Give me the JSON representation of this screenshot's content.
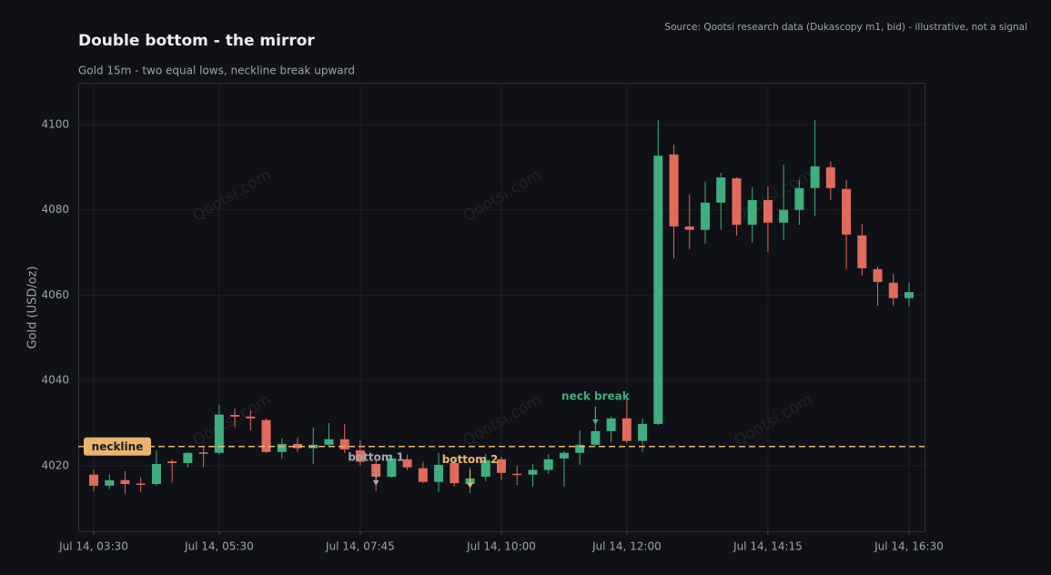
{
  "chart_data": {
    "type": "candlestick",
    "title": "Double bottom - the mirror",
    "subtitle": "Gold 15m - two equal lows, neckline break upward",
    "source": "Source: Qootsi research data (Dukascopy m1, bid) - illustrative, not a signal",
    "y_label": "Gold (USD/oz)",
    "watermark": "Qootsi.com",
    "up_color": "#3fae80",
    "down_color": "#e06a5c",
    "x": [
      210,
      225,
      240,
      255,
      270,
      285,
      300,
      315,
      330,
      345,
      360,
      375,
      390,
      405,
      420,
      435,
      450,
      465,
      480,
      495,
      510,
      525,
      540,
      555,
      570,
      585,
      600,
      615,
      630,
      645,
      660,
      675,
      690,
      705,
      720,
      735,
      750,
      765,
      780,
      795,
      810,
      825,
      840,
      855,
      870,
      885,
      900,
      915,
      930,
      945,
      960,
      975,
      990
    ],
    "open": [
      4017.9,
      4015.3,
      4016.6,
      4015.8,
      4015.7,
      4021.0,
      4020.6,
      4023.1,
      4023.0,
      4031.9,
      4031.5,
      4030.7,
      4023.2,
      4025.1,
      4024.1,
      4024.9,
      4026.2,
      4023.6,
      4020.4,
      4017.4,
      4021.5,
      4019.4,
      4016.2,
      4020.6,
      4015.7,
      4017.4,
      4021.5,
      4018.1,
      4017.9,
      4019.0,
      4021.7,
      4023.0,
      4024.9,
      4028.1,
      4031.1,
      4025.8,
      4029.8,
      4093.0,
      4076.1,
      4075.3,
      4081.7,
      4087.4,
      4076.5,
      4082.3,
      4077.0,
      4080.0,
      4085.1,
      4090.0,
      4084.9,
      4074.0,
      4066.1,
      4062.9,
      4059.3
    ],
    "high": [
      4019.0,
      4017.9,
      4018.7,
      4017.2,
      4023.6,
      4021.5,
      4023.2,
      4024.6,
      4034.3,
      4033.4,
      4033.0,
      4031.1,
      4026.4,
      4026.6,
      4029.0,
      4030.0,
      4029.8,
      4026.0,
      4021.5,
      4022.6,
      4022.6,
      4020.9,
      4023.0,
      4021.5,
      4019.6,
      4022.8,
      4022.1,
      4020.0,
      4020.4,
      4022.6,
      4023.4,
      4028.3,
      4030.4,
      4031.5,
      4036.0,
      4031.1,
      4101.1,
      4095.3,
      4083.6,
      4086.6,
      4088.7,
      4087.6,
      4085.3,
      4085.5,
      4090.6,
      4087.0,
      4101.1,
      4091.3,
      4087.0,
      4076.7,
      4066.7,
      4065.0,
      4062.9
    ],
    "low": [
      4014.0,
      4014.5,
      4013.4,
      4013.8,
      4015.3,
      4016.0,
      4019.6,
      4019.6,
      4022.6,
      4029.0,
      4028.3,
      4023.0,
      4021.7,
      4023.2,
      4020.4,
      4024.3,
      4023.0,
      4020.0,
      4014.0,
      4017.2,
      4019.0,
      4015.9,
      4013.8,
      4015.1,
      4013.6,
      4016.4,
      4016.6,
      4015.5,
      4015.1,
      4018.1,
      4015.1,
      4020.2,
      4024.7,
      4025.5,
      4025.3,
      4023.2,
      4029.6,
      4068.6,
      4070.8,
      4072.1,
      4075.3,
      4074.0,
      4072.3,
      4070.1,
      4072.9,
      4076.5,
      4078.5,
      4082.3,
      4066.1,
      4064.6,
      4057.5,
      4057.5,
      4057.3
    ],
    "close": [
      4015.3,
      4016.6,
      4015.7,
      4015.6,
      4020.4,
      4020.6,
      4023.0,
      4022.8,
      4032.0,
      4031.5,
      4031.1,
      4023.2,
      4025.1,
      4024.1,
      4024.9,
      4026.2,
      4023.8,
      4020.9,
      4017.4,
      4021.7,
      4019.6,
      4016.2,
      4020.2,
      4015.9,
      4017.0,
      4021.3,
      4018.3,
      4017.9,
      4019.0,
      4021.5,
      4023.0,
      4024.9,
      4028.1,
      4031.1,
      4025.8,
      4029.8,
      4092.7,
      4076.1,
      4075.3,
      4081.7,
      4087.6,
      4076.5,
      4082.3,
      4077.0,
      4080.0,
      4085.1,
      4090.2,
      4085.1,
      4074.2,
      4066.3,
      4063.1,
      4059.3,
      4060.7
    ],
    "xlim": [
      195.2,
      1004.8
    ],
    "ylim": [
      4004.6,
      4109.8
    ],
    "xticks": [
      {
        "value": 210,
        "label": "Jul 14, 03:30"
      },
      {
        "value": 330,
        "label": "Jul 14, 05:30"
      },
      {
        "value": 465,
        "label": "Jul 14, 07:45"
      },
      {
        "value": 600,
        "label": "Jul 14, 10:00"
      },
      {
        "value": 720,
        "label": "Jul 14, 12:00"
      },
      {
        "value": 855,
        "label": "Jul 14, 14:15"
      },
      {
        "value": 990,
        "label": "Jul 14, 16:30"
      }
    ],
    "yticks": [
      4020,
      4040,
      4060,
      4080,
      4100
    ],
    "grid": true,
    "hline": {
      "value": 4024.5,
      "label": "neckline",
      "color": "#e8b56e"
    },
    "annotations": [
      {
        "text": "bottom 1",
        "x": 480,
        "y": 4015.3,
        "color": "#a3a8b3"
      },
      {
        "text": "bottom 2",
        "x": 570,
        "y": 4014.7,
        "color": "#e8b56e"
      },
      {
        "text": "neck break",
        "x": 690,
        "y": 4029.6,
        "color": "#3fae80"
      }
    ]
  }
}
